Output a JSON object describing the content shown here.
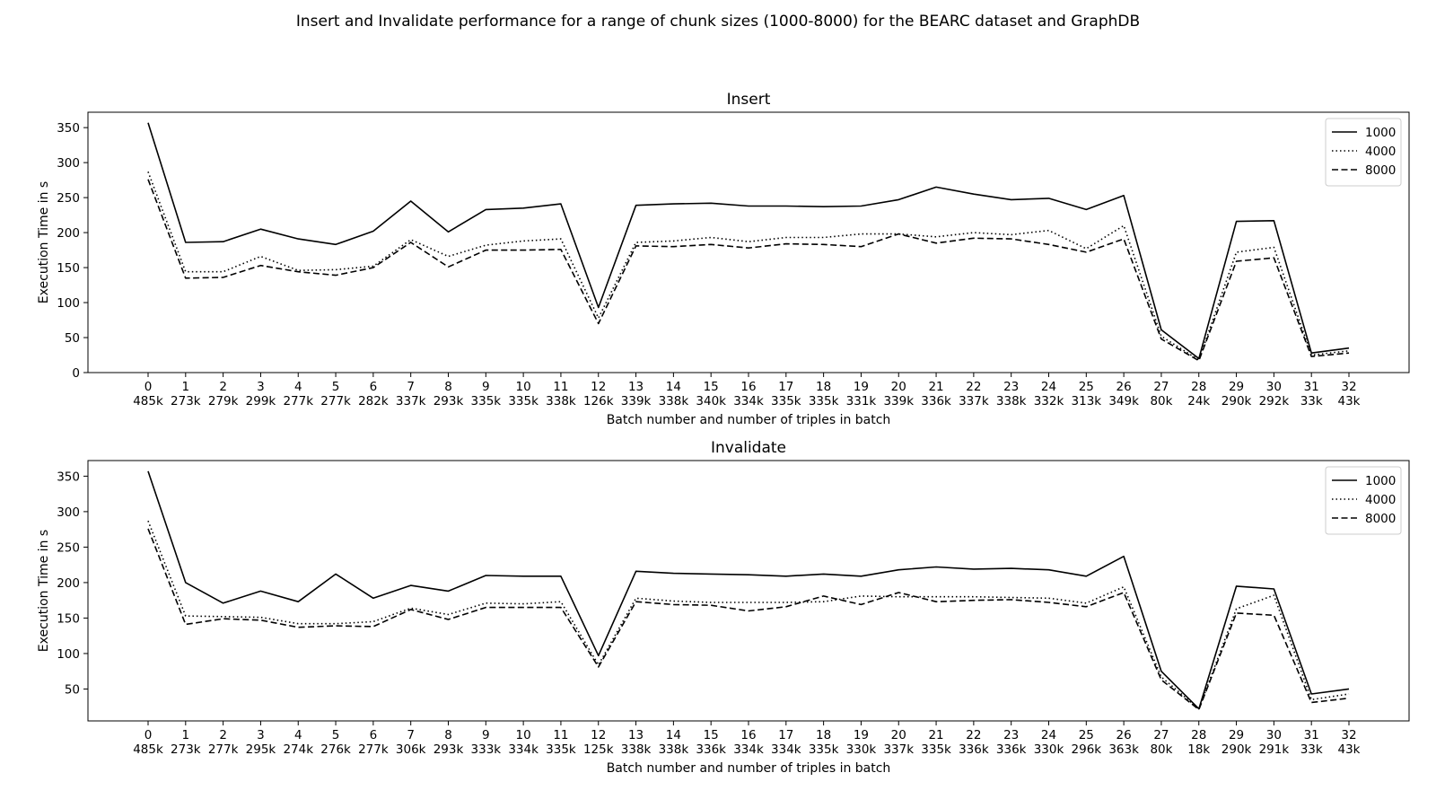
{
  "figure_title": "Insert and Invalidate performance for a range of chunk sizes (1000-8000) for the BEARC dataset and GraphDB",
  "chart_data": [
    {
      "type": "line",
      "title": "Insert",
      "xlabel": "Batch number and number of triples in batch",
      "ylabel": "Execution Time in s",
      "ylim": [
        0,
        372
      ],
      "yticks": [
        0,
        50,
        100,
        150,
        200,
        250,
        300,
        350
      ],
      "grid": false,
      "legend": "top-right",
      "categories": [
        "0\n485k",
        "1\n273k",
        "2\n279k",
        "3\n299k",
        "4\n277k",
        "5\n277k",
        "6\n282k",
        "7\n337k",
        "8\n293k",
        "9\n335k",
        "10\n335k",
        "11\n338k",
        "12\n126k",
        "13\n339k",
        "14\n338k",
        "15\n340k",
        "16\n334k",
        "17\n335k",
        "18\n335k",
        "19\n331k",
        "20\n339k",
        "21\n336k",
        "22\n337k",
        "23\n338k",
        "24\n332k",
        "25\n313k",
        "26\n349k",
        "27\n80k",
        "28\n24k",
        "29\n290k",
        "30\n292k",
        "31\n33k",
        "32\n43k"
      ],
      "series": [
        {
          "name": "1000",
          "style": "solid",
          "values": [
            357,
            186,
            187,
            205,
            191,
            183,
            202,
            245,
            201,
            233,
            235,
            241,
            93,
            239,
            241,
            242,
            238,
            238,
            237,
            238,
            247,
            265,
            255,
            247,
            249,
            233,
            253,
            61,
            20,
            216,
            217,
            28,
            35
          ]
        },
        {
          "name": "4000",
          "style": "dotted",
          "values": [
            287,
            144,
            144,
            166,
            146,
            147,
            152,
            190,
            166,
            182,
            188,
            191,
            78,
            186,
            188,
            193,
            187,
            193,
            193,
            198,
            198,
            194,
            200,
            197,
            203,
            177,
            210,
            52,
            18,
            172,
            179,
            25,
            31
          ]
        },
        {
          "name": "8000",
          "style": "dashed",
          "values": [
            276,
            135,
            136,
            153,
            144,
            139,
            150,
            186,
            151,
            175,
            175,
            176,
            70,
            181,
            180,
            183,
            178,
            184,
            183,
            180,
            198,
            185,
            192,
            191,
            183,
            172,
            191,
            48,
            17,
            159,
            164,
            23,
            28
          ]
        }
      ]
    },
    {
      "type": "line",
      "title": "Invalidate",
      "xlabel": "Batch number and number of triples in batch",
      "ylabel": "Execution Time in s",
      "ylim": [
        5,
        372
      ],
      "yticks": [
        50,
        100,
        150,
        200,
        250,
        300,
        350
      ],
      "grid": false,
      "legend": "top-right",
      "categories": [
        "0\n485k",
        "1\n273k",
        "2\n277k",
        "3\n295k",
        "4\n274k",
        "5\n276k",
        "6\n277k",
        "7\n306k",
        "8\n293k",
        "9\n333k",
        "10\n334k",
        "11\n335k",
        "12\n125k",
        "13\n338k",
        "14\n338k",
        "15\n336k",
        "16\n334k",
        "17\n334k",
        "18\n335k",
        "19\n330k",
        "20\n337k",
        "21\n335k",
        "22\n336k",
        "23\n336k",
        "24\n330k",
        "25\n296k",
        "26\n363k",
        "27\n80k",
        "28\n18k",
        "29\n290k",
        "30\n291k",
        "31\n33k",
        "32\n43k"
      ],
      "series": [
        {
          "name": "1000",
          "style": "solid",
          "values": [
            357,
            200,
            171,
            188,
            173,
            212,
            178,
            196,
            188,
            210,
            209,
            209,
            97,
            216,
            213,
            212,
            211,
            209,
            212,
            209,
            218,
            222,
            219,
            220,
            218,
            209,
            237,
            75,
            22,
            195,
            191,
            43,
            50
          ]
        },
        {
          "name": "4000",
          "style": "dotted",
          "values": [
            287,
            153,
            152,
            151,
            142,
            142,
            145,
            164,
            155,
            171,
            170,
            173,
            84,
            178,
            174,
            172,
            172,
            172,
            173,
            181,
            180,
            180,
            180,
            179,
            178,
            171,
            194,
            67,
            22,
            163,
            182,
            35,
            43
          ]
        },
        {
          "name": "8000",
          "style": "dashed",
          "values": [
            276,
            141,
            149,
            147,
            137,
            139,
            138,
            162,
            148,
            165,
            165,
            165,
            81,
            173,
            169,
            168,
            160,
            166,
            181,
            169,
            186,
            173,
            175,
            176,
            172,
            166,
            186,
            63,
            21,
            157,
            154,
            31,
            37
          ]
        }
      ]
    }
  ]
}
